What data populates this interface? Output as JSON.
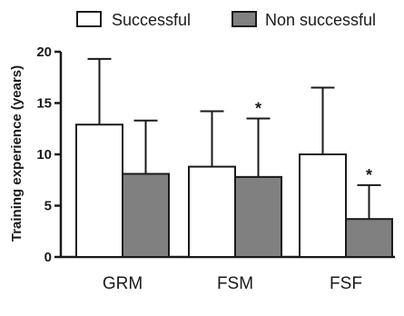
{
  "chart_data": {
    "type": "bar",
    "ylabel": "Training experience (years)",
    "ylim": [
      0,
      20
    ],
    "yticks": [
      0,
      5,
      10,
      15,
      20
    ],
    "categories": [
      "GRM",
      "FSM",
      "FSF"
    ],
    "series": [
      {
        "name": "Successful",
        "color": "#ffffff",
        "values": [
          12.9,
          8.8,
          10.0
        ],
        "errors": [
          6.4,
          5.4,
          6.5
        ],
        "annotations": [
          "",
          "",
          ""
        ]
      },
      {
        "name": "Non successful",
        "color": "#808080",
        "values": [
          8.1,
          7.8,
          3.7
        ],
        "errors": [
          5.2,
          5.7,
          3.3
        ],
        "annotations": [
          "",
          "*",
          "*"
        ]
      }
    ],
    "legend_position": "top"
  }
}
